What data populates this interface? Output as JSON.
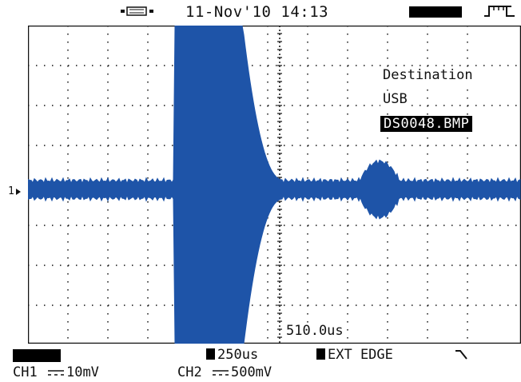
{
  "header": {
    "datetime": "11-Nov'10 14:13",
    "icons": [
      "usb-connection-icon",
      "rising-edge-trigger-icon"
    ]
  },
  "screen": {
    "channel_marker": "1",
    "destination": {
      "title": "Destination",
      "device": "USB",
      "filename": "DS0048.BMP"
    },
    "time_readout": "510.0us"
  },
  "status": {
    "timebase": "250us",
    "trigger": "EXT EDGE",
    "trigger_slope_icon": "falling-slope-icon",
    "ch1": {
      "label": "CH1",
      "scale": "10mV"
    },
    "ch2": {
      "label": "CH2",
      "scale": "500mV"
    }
  },
  "colors": {
    "trace": "#1e54a8",
    "grid": "#111111",
    "background": "#ffffff"
  }
}
